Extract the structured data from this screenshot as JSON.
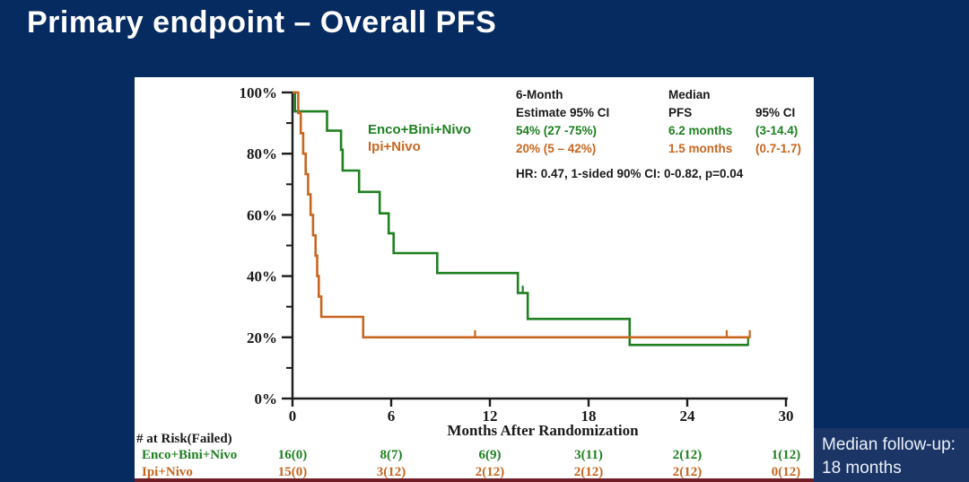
{
  "title": "Primary endpoint – Overall PFS",
  "followup_note": {
    "line1": "Median follow-up:",
    "line2": "18 months"
  },
  "colors": {
    "bg": "#062b60",
    "panel": "#ffffff",
    "box": "#1a3566",
    "strip": "#701d26",
    "green": "#1f8021",
    "orange": "#c8661f",
    "axis": "#1c1c1c",
    "text": "#1a1a1a"
  },
  "chart_data": {
    "type": "line",
    "subtype": "kaplan-meier-step",
    "title": "",
    "xlabel": "Months After Randomization",
    "ylabel": "",
    "xlim": [
      0,
      30
    ],
    "ylim": [
      0,
      100
    ],
    "xticks": [
      0,
      6,
      12,
      18,
      24,
      30
    ],
    "yticks_major": [
      0,
      20,
      40,
      60,
      80,
      100
    ],
    "yticks_minor": [
      10,
      30,
      50,
      70,
      90
    ],
    "grid": false,
    "legend": {
      "items": [
        "Enco+Bini+Nivo",
        "Ipi+Nivo"
      ],
      "position": "inner-upper-left"
    },
    "series": [
      {
        "name": "Enco+Bini+Nivo",
        "color": "green",
        "steps": [
          [
            0,
            100
          ],
          [
            0.15,
            93.8
          ],
          [
            2.1,
            87.5
          ],
          [
            2.95,
            81.3
          ],
          [
            3.05,
            74.5
          ],
          [
            4.05,
            67.5
          ],
          [
            5.3,
            60.5
          ],
          [
            5.85,
            54
          ],
          [
            6.15,
            47.5
          ],
          [
            8.8,
            41
          ],
          [
            13.7,
            34.5
          ],
          [
            14.3,
            26
          ],
          [
            20.5,
            17.5
          ]
        ],
        "end": 27.7,
        "censors": [
          [
            14.0,
            34.5
          ],
          [
            27.7,
            17.5
          ]
        ]
      },
      {
        "name": "Ipi+Nivo",
        "color": "orange",
        "steps": [
          [
            0,
            100
          ],
          [
            0.35,
            93.3
          ],
          [
            0.5,
            86.7
          ],
          [
            0.65,
            80
          ],
          [
            0.8,
            73.3
          ],
          [
            0.95,
            66.7
          ],
          [
            1.1,
            60
          ],
          [
            1.25,
            53.3
          ],
          [
            1.4,
            46.7
          ],
          [
            1.5,
            40
          ],
          [
            1.6,
            33.3
          ],
          [
            1.75,
            26.7
          ],
          [
            4.3,
            20
          ]
        ],
        "end": 27.8,
        "censors": [
          [
            11.1,
            20
          ],
          [
            26.4,
            20
          ],
          [
            27.8,
            20
          ]
        ]
      }
    ],
    "stats": {
      "col1_header_line1": "6-Month",
      "col1_header_line2": "Estimate 95% CI",
      "col2_header_line1": "Median",
      "col2_header_line2": "PFS",
      "col3_header_line2": "95% CI",
      "rows": [
        {
          "estimate": "54% (27 -75%)",
          "median": "6.2 months",
          "ci": "(3-14.4)",
          "color": "green"
        },
        {
          "estimate": "20% (5 – 42%)",
          "median": "1.5 months",
          "ci": "(0.7-1.7)",
          "color": "orange"
        }
      ],
      "hr_line": "HR: 0.47, 1-sided 90% CI: 0-0.82, p=0.04"
    },
    "risk_table": {
      "header": "# at Risk(Failed)",
      "rows": [
        {
          "label": "Enco+Bini+Nivo",
          "color": "green",
          "values": [
            "16(0)",
            "8(7)",
            "6(9)",
            "3(11)",
            "2(12)",
            "1(12)"
          ]
        },
        {
          "label": "Ipi+Nivo",
          "color": "orange",
          "values": [
            "15(0)",
            "3(12)",
            "2(12)",
            "2(12)",
            "2(12)",
            "0(12)"
          ]
        }
      ]
    }
  }
}
